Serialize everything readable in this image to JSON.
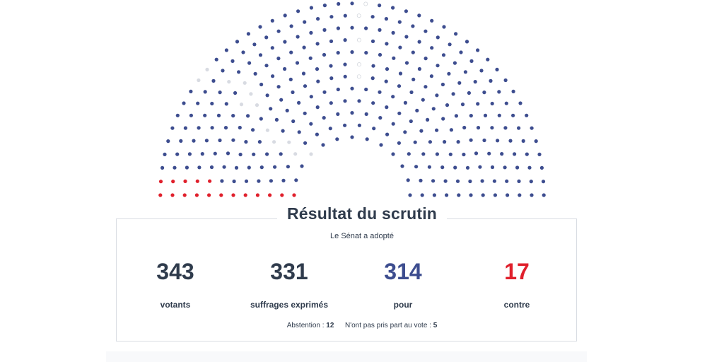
{
  "colors": {
    "pour": "#3d4d8f",
    "contre": "#e0202c",
    "abstention": "#d8dbe2",
    "absent": "#ffffff",
    "dark_text": "#2f3b4c"
  },
  "result": {
    "title": "Résultat du scrutin",
    "subtitle": "Le Sénat a adopté",
    "stats": [
      {
        "value": "343",
        "label": "votants",
        "color": "#2f3b4c"
      },
      {
        "value": "331",
        "label": "suffrages exprimés",
        "color": "#2f3b4c"
      },
      {
        "value": "314",
        "label": "pour",
        "color": "#3d4d8f"
      },
      {
        "value": "17",
        "label": "contre",
        "color": "#e0202c"
      }
    ],
    "abstention_label": "Abstention :",
    "abstention_value": "12",
    "absent_label": "N'ont pas pris part au vote :",
    "absent_value": "5"
  },
  "chart_data": {
    "type": "hemicycle",
    "title": "Résultat du scrutin",
    "seats_total": 348,
    "series": [
      {
        "name": "pour",
        "value": 314,
        "color": "#3d4d8f"
      },
      {
        "name": "contre",
        "value": 17,
        "color": "#e0202c"
      },
      {
        "name": "Abstention",
        "value": 12,
        "color": "#d8dbe2"
      },
      {
        "name": "N'ont pas pris part au vote",
        "value": 5,
        "color": "#ffffff"
      }
    ]
  }
}
